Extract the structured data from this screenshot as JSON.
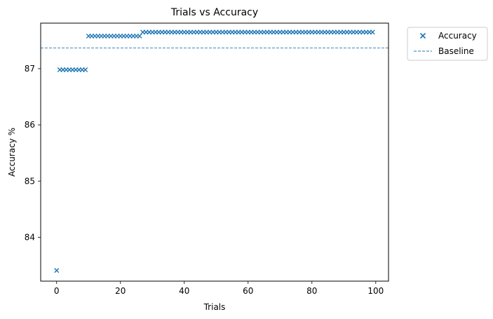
{
  "chart_data": {
    "type": "scatter",
    "title": "Trials vs Accuracy",
    "xlabel": "Trials",
    "ylabel": "Accuracy %",
    "xlim": [
      -5,
      104
    ],
    "ylim": [
      83.22,
      87.81
    ],
    "xticks": [
      0,
      20,
      40,
      60,
      80,
      100
    ],
    "yticks": [
      84,
      85,
      86,
      87
    ],
    "grid": false,
    "legend": "outside-top-right",
    "series": [
      {
        "name": "Accuracy",
        "marker": "x",
        "color": "#1f77b4",
        "segments": [
          {
            "x_from": 0,
            "x_to": 0,
            "y": 83.41
          },
          {
            "x_from": 1,
            "x_to": 9,
            "y": 86.98
          },
          {
            "x_from": 10,
            "x_to": 26,
            "y": 87.58
          },
          {
            "x_from": 27,
            "x_to": 99,
            "y": 87.65
          }
        ]
      }
    ],
    "reference_lines": [
      {
        "name": "Baseline",
        "orientation": "horizontal",
        "y": 87.37,
        "style": "dashed",
        "color": "#1f77b4"
      }
    ]
  }
}
